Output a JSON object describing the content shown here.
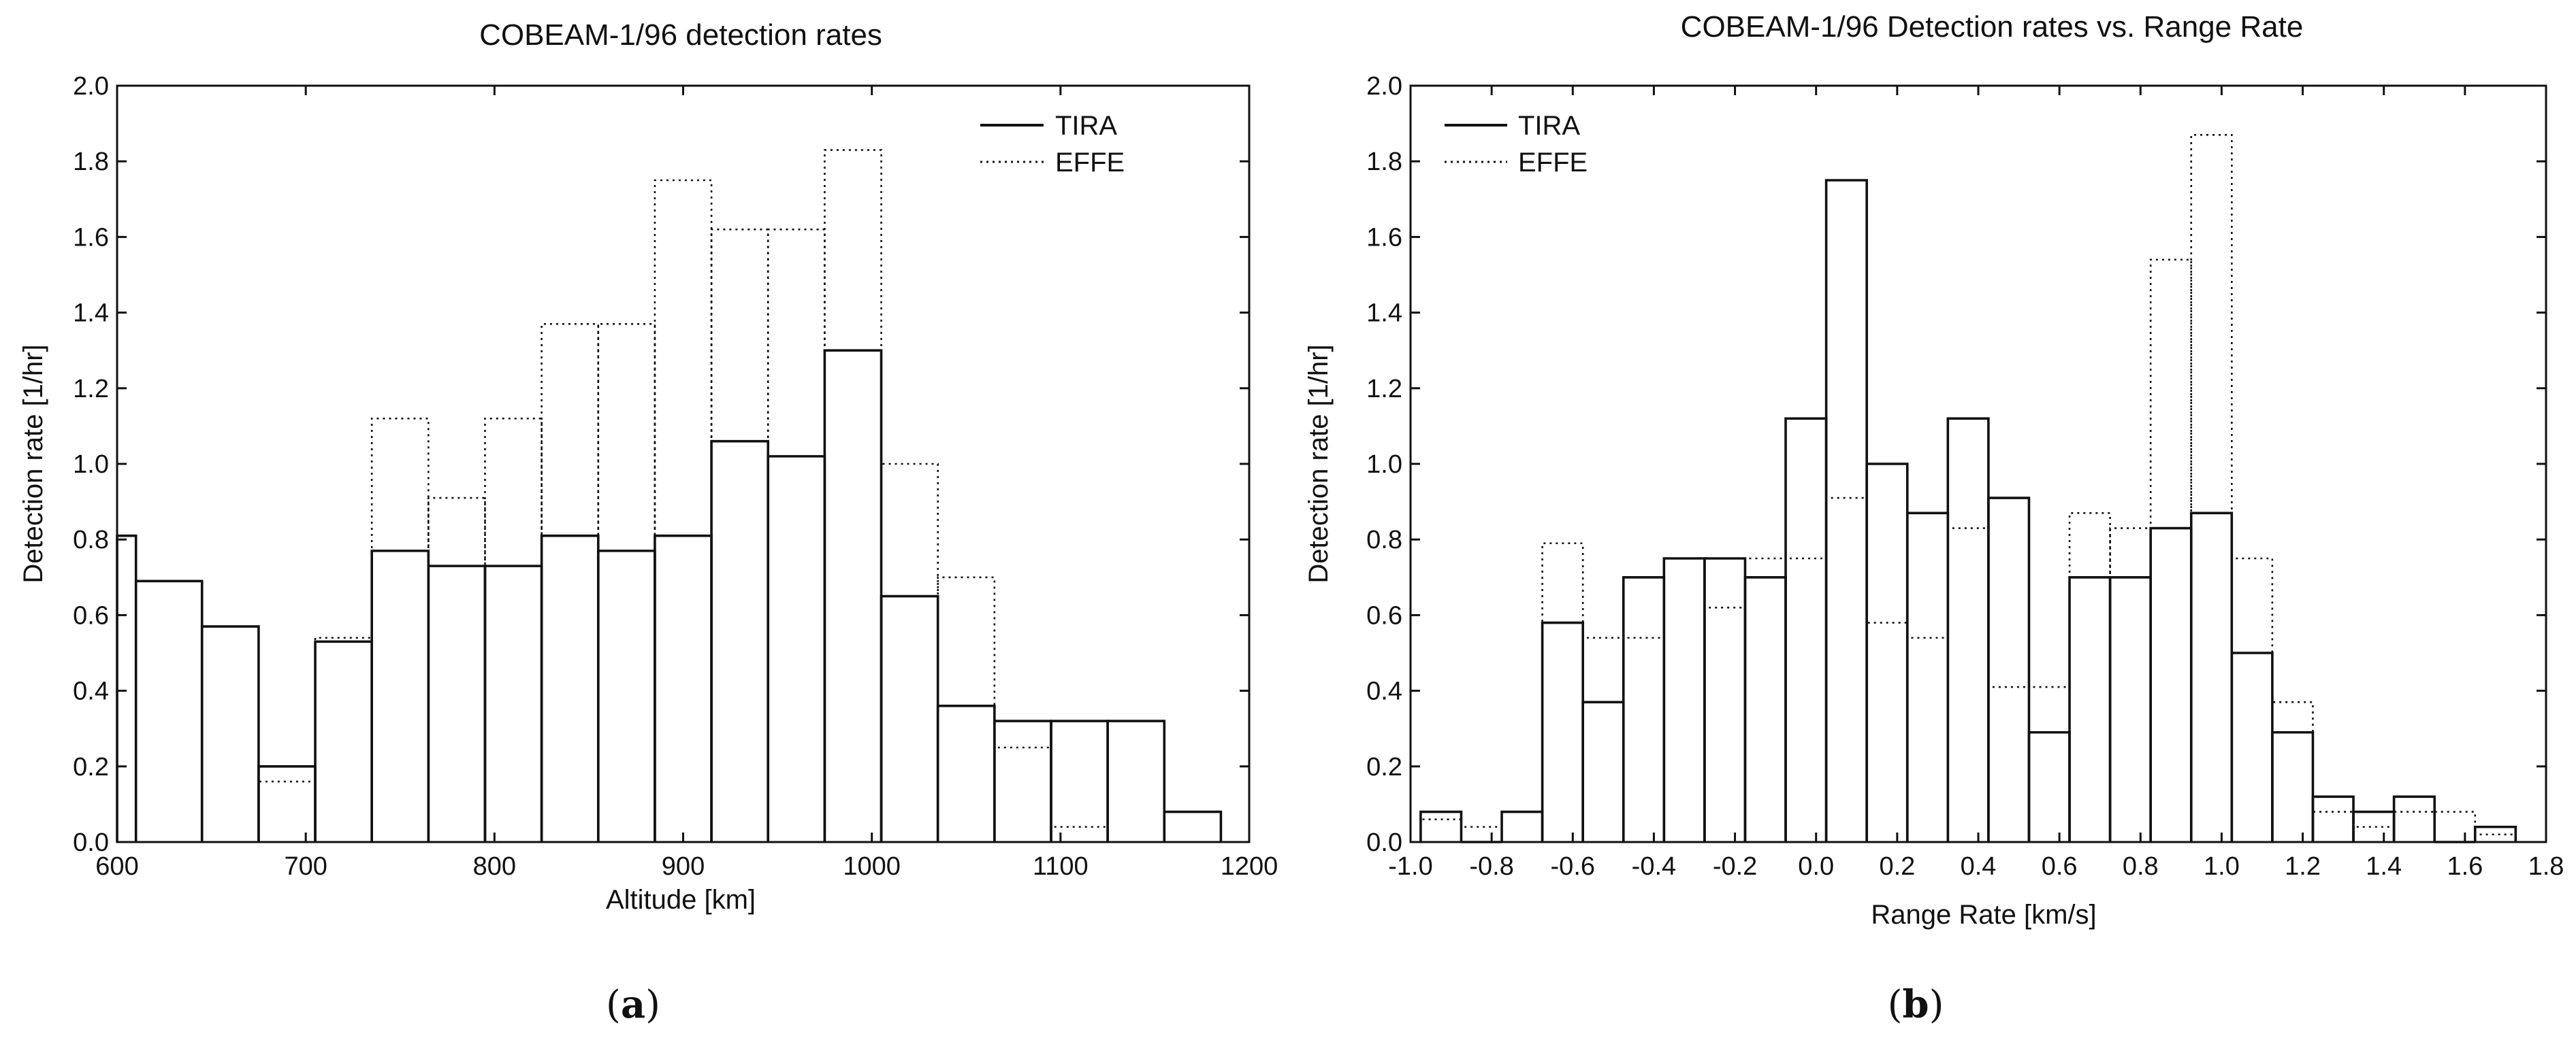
{
  "chart_data": [
    {
      "id": "a",
      "type": "histogram",
      "title": "COBEAM-1/96 detection rates",
      "xlabel": "Altitude [km]",
      "ylabel": "Detection rate [1/hr]",
      "xlim": [
        600,
        1200
      ],
      "ylim": [
        0.0,
        2.0
      ],
      "xticks": [
        600,
        700,
        800,
        900,
        1000,
        1100,
        1200
      ],
      "xtick_labels": [
        "600",
        "700",
        "800",
        "900",
        "1000",
        "1100",
        "1200"
      ],
      "yticks": [
        0.0,
        0.2,
        0.4,
        0.6,
        0.8,
        1.0,
        1.2,
        1.4,
        1.6,
        1.8,
        2.0
      ],
      "ytick_labels": [
        "0.0",
        "0.2",
        "0.4",
        "0.6",
        "0.8",
        "1.0",
        "1.2",
        "1.4",
        "1.6",
        "1.8",
        "2.0"
      ],
      "legend": {
        "position": "top-right",
        "entries": [
          "TIRA",
          "EFFE"
        ]
      },
      "caption": "a",
      "series": [
        {
          "name": "TIRA",
          "style": "solid",
          "bin_edges": [
            600,
            610,
            645,
            675,
            705,
            735,
            765,
            795,
            825,
            855,
            885,
            915,
            945,
            975,
            1005,
            1035,
            1065,
            1095,
            1125,
            1155,
            1185
          ],
          "values": [
            0.81,
            0.69,
            0.57,
            0.2,
            0.53,
            0.77,
            0.73,
            0.73,
            0.81,
            0.77,
            0.81,
            1.06,
            1.02,
            1.3,
            0.65,
            0.36,
            0.32,
            0.32,
            0.32,
            0.08
          ]
        },
        {
          "name": "EFFE",
          "style": "dotted",
          "bin_edges": [
            675,
            705,
            735,
            765,
            795,
            825,
            855,
            885,
            915,
            945,
            975,
            1005,
            1035,
            1065,
            1095,
            1125
          ],
          "values": [
            0.16,
            0.54,
            1.12,
            0.91,
            1.12,
            1.37,
            1.37,
            1.75,
            1.62,
            1.62,
            1.83,
            1.0,
            0.7,
            0.25,
            0.04
          ]
        }
      ]
    },
    {
      "id": "b",
      "type": "histogram",
      "title": "COBEAM-1/96 Detection rates vs. Range Rate",
      "xlabel": "Range Rate [km/s]",
      "ylabel": "Detection rate [1/hr]",
      "xlim": [
        -1.0,
        1.8
      ],
      "ylim": [
        0.0,
        2.0
      ],
      "xticks": [
        -1.0,
        -0.8,
        -0.6,
        -0.4,
        -0.2,
        0.0,
        0.2,
        0.4,
        0.6,
        0.8,
        1.0,
        1.2,
        1.4,
        1.6,
        1.8
      ],
      "xtick_labels": [
        "-1.0",
        "-0.8",
        "-0.6",
        "-0.4",
        "-0.2",
        "0.0",
        "0.2",
        "0.4",
        "0.6",
        "0.8",
        "1.0",
        "1.2",
        "1.4",
        "1.6",
        "1.8"
      ],
      "yticks": [
        0.0,
        0.2,
        0.4,
        0.6,
        0.8,
        1.0,
        1.2,
        1.4,
        1.6,
        1.8,
        2.0
      ],
      "ytick_labels": [
        "0.0",
        "0.2",
        "0.4",
        "0.6",
        "0.8",
        "1.0",
        "1.2",
        "1.4",
        "1.6",
        "1.8",
        "2.0"
      ],
      "legend": {
        "position": "top-left",
        "entries": [
          "TIRA",
          "EFFE"
        ]
      },
      "caption": "b",
      "series": [
        {
          "name": "TIRA",
          "style": "solid",
          "bin_edges": [
            -0.975,
            -0.875,
            -0.775,
            -0.675,
            -0.575,
            -0.475,
            -0.375,
            -0.275,
            -0.175,
            -0.075,
            0.025,
            0.125,
            0.225,
            0.325,
            0.425,
            0.525,
            0.625,
            0.725,
            0.825,
            0.925,
            1.025,
            1.125,
            1.225,
            1.325,
            1.425,
            1.525,
            1.625,
            1.725
          ],
          "values": [
            0.08,
            0.0,
            0.08,
            0.58,
            0.37,
            0.7,
            0.75,
            0.75,
            0.7,
            1.12,
            1.75,
            1.0,
            0.87,
            1.12,
            0.91,
            0.29,
            0.7,
            0.7,
            0.83,
            0.87,
            0.5,
            0.29,
            0.12,
            0.08,
            0.12,
            0.0,
            0.04
          ]
        },
        {
          "name": "EFFE",
          "style": "dotted",
          "bin_edges": [
            -0.975,
            -0.875,
            -0.775,
            -0.675,
            -0.575,
            -0.475,
            -0.375,
            -0.275,
            -0.175,
            -0.075,
            0.025,
            0.125,
            0.225,
            0.325,
            0.425,
            0.525,
            0.625,
            0.725,
            0.825,
            0.925,
            1.025,
            1.125,
            1.225,
            1.325,
            1.425,
            1.525,
            1.625,
            1.725
          ],
          "values": [
            0.06,
            0.04,
            0.08,
            0.79,
            0.54,
            0.54,
            0.75,
            0.62,
            0.75,
            0.75,
            0.91,
            0.58,
            0.54,
            0.83,
            0.41,
            0.41,
            0.87,
            0.83,
            1.54,
            1.87,
            0.75,
            0.37,
            0.08,
            0.04,
            0.08,
            0.08,
            0.02
          ]
        }
      ]
    }
  ]
}
